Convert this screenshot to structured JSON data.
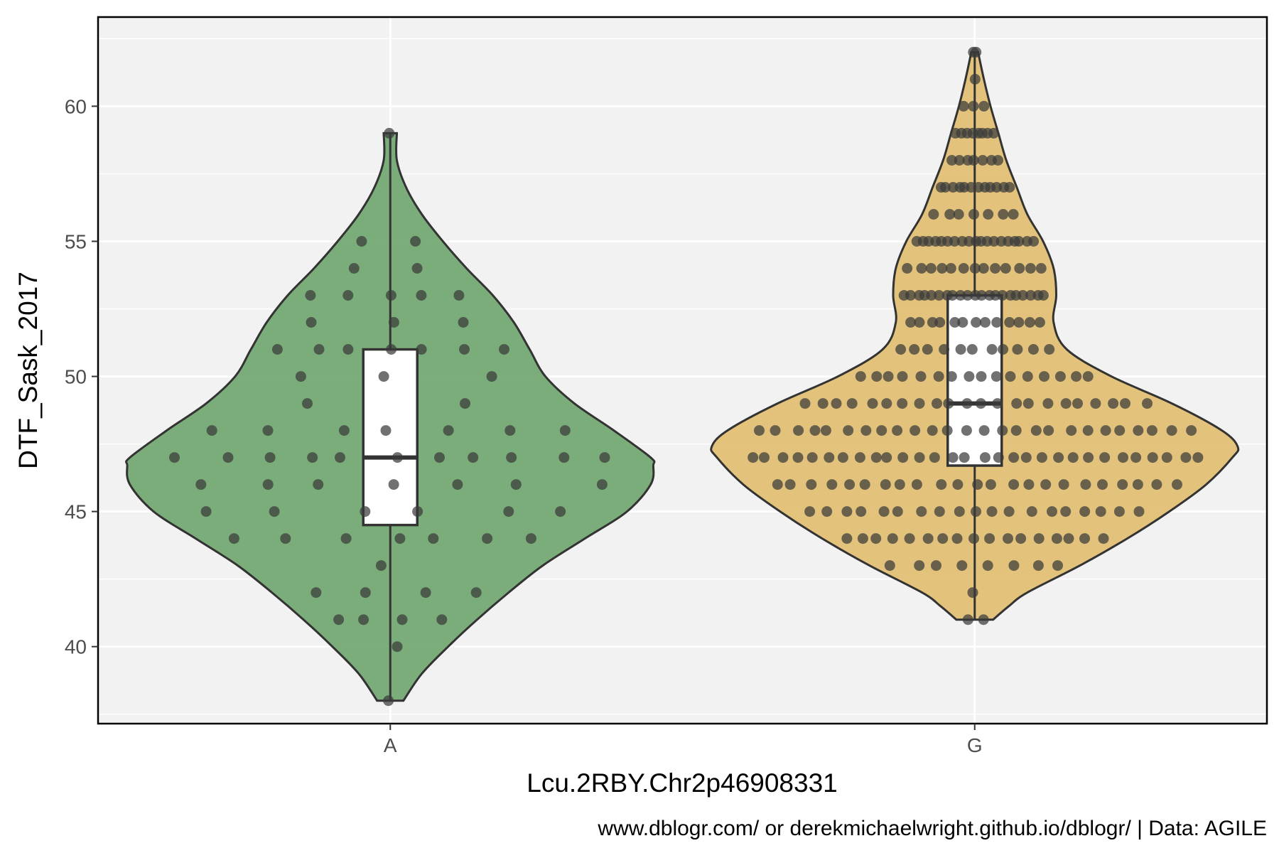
{
  "chart_data": {
    "type": "violin",
    "title": "",
    "xlabel": "Lcu.2RBY.Chr2p46908331",
    "ylabel": "DTF_Sask_2017",
    "caption": "www.dblogr.com/ or derekmichaelwright.github.io/dblogr/ | Data: AGILE",
    "ylim": [
      37.15,
      63.3
    ],
    "yticks": [
      "40",
      "45",
      "50",
      "55",
      "60"
    ],
    "categories": [
      "A",
      "G"
    ],
    "grid": true,
    "legend": "none",
    "colors": {
      "A": "#6aa36a",
      "G": "#e0bc6b",
      "panel": "#f2f2f2",
      "grid": "#ffffff",
      "outline": "#333333",
      "points": "#3a3a3a"
    },
    "series": [
      {
        "name": "A",
        "box": {
          "min": 38,
          "q1": 44.5,
          "median": 47,
          "q3": 51,
          "max": 59
        },
        "density": [
          [
            38,
            0.05
          ],
          [
            39,
            0.12
          ],
          [
            40,
            0.22
          ],
          [
            41,
            0.33
          ],
          [
            42,
            0.45
          ],
          [
            43,
            0.58
          ],
          [
            44,
            0.74
          ],
          [
            45,
            0.9
          ],
          [
            46,
            0.99
          ],
          [
            46.7,
            1.0
          ],
          [
            47,
            0.99
          ],
          [
            48,
            0.85
          ],
          [
            49,
            0.7
          ],
          [
            50,
            0.59
          ],
          [
            51,
            0.53
          ],
          [
            52,
            0.47
          ],
          [
            53,
            0.39
          ],
          [
            54,
            0.29
          ],
          [
            55,
            0.2
          ],
          [
            56,
            0.12
          ],
          [
            57,
            0.06
          ],
          [
            58,
            0.025
          ],
          [
            59,
            0.025
          ]
        ],
        "points": [
          [
            38,
            1
          ],
          [
            40,
            1
          ],
          [
            41,
            4
          ],
          [
            42,
            4
          ],
          [
            43,
            1
          ],
          [
            44,
            7
          ],
          [
            45,
            6
          ],
          [
            46,
            7
          ],
          [
            47,
            11
          ],
          [
            48,
            7
          ],
          [
            49,
            2
          ],
          [
            50,
            3
          ],
          [
            51,
            7
          ],
          [
            52,
            3
          ],
          [
            53,
            5
          ],
          [
            54,
            2
          ],
          [
            55,
            2
          ],
          [
            59,
            1
          ]
        ]
      },
      {
        "name": "G",
        "box": {
          "min": 41,
          "q1": 46.7,
          "median": 49,
          "q3": 53,
          "max": 62
        },
        "density": [
          [
            41,
            0.07
          ],
          [
            41.5,
            0.13
          ],
          [
            42,
            0.2
          ],
          [
            43,
            0.4
          ],
          [
            44,
            0.58
          ],
          [
            45,
            0.74
          ],
          [
            46,
            0.88
          ],
          [
            47,
            0.98
          ],
          [
            47.4,
            1.0
          ],
          [
            48,
            0.94
          ],
          [
            49,
            0.75
          ],
          [
            50,
            0.52
          ],
          [
            51,
            0.35
          ],
          [
            52,
            0.3
          ],
          [
            53,
            0.31
          ],
          [
            54,
            0.3
          ],
          [
            55,
            0.26
          ],
          [
            56,
            0.2
          ],
          [
            57,
            0.16
          ],
          [
            58,
            0.12
          ],
          [
            59,
            0.09
          ],
          [
            60,
            0.06
          ],
          [
            61,
            0.035
          ],
          [
            62,
            0.013
          ]
        ],
        "points": [
          [
            41,
            2
          ],
          [
            42,
            1
          ],
          [
            43,
            8
          ],
          [
            44,
            17
          ],
          [
            45,
            19
          ],
          [
            46,
            23
          ],
          [
            47,
            30
          ],
          [
            48,
            26
          ],
          [
            49,
            22
          ],
          [
            50,
            16
          ],
          [
            51,
            11
          ],
          [
            52,
            13
          ],
          [
            53,
            21
          ],
          [
            54,
            13
          ],
          [
            55,
            19
          ],
          [
            56,
            7
          ],
          [
            57,
            12
          ],
          [
            58,
            7
          ],
          [
            59,
            8
          ],
          [
            60,
            3
          ],
          [
            61,
            1
          ],
          [
            62,
            2
          ]
        ]
      }
    ]
  }
}
